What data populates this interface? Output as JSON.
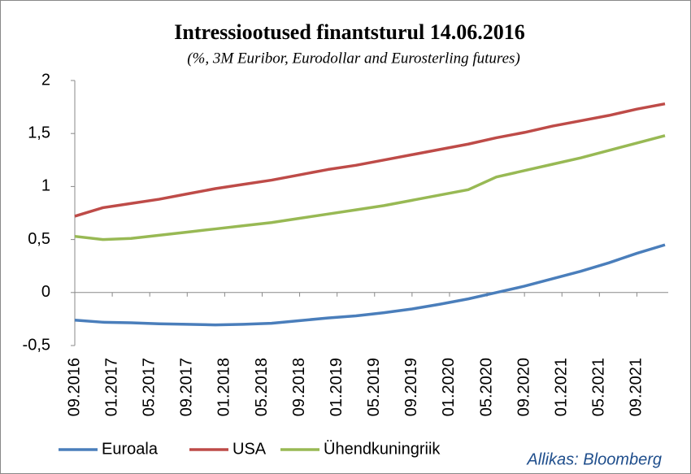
{
  "chart_data": {
    "type": "line",
    "title": "Intressiootused finantsturul 14.06.2016",
    "subtitle": "(%, 3M Euribor, Eurodollar and Eurosterling futures)",
    "source": "Allikas:  Bloomberg",
    "x": [
      "09.2016",
      "12.2016",
      "03.2017",
      "06.2017",
      "09.2017",
      "12.2017",
      "03.2018",
      "06.2018",
      "09.2018",
      "12.2018",
      "03.2019",
      "06.2019",
      "09.2019",
      "12.2019",
      "03.2020",
      "06.2020",
      "09.2020",
      "12.2020",
      "03.2021",
      "06.2021",
      "09.2021",
      "12.2021"
    ],
    "xlim": [
      "09.2016",
      "12.2021"
    ],
    "xticks": [
      "09.2016",
      "01.2017",
      "05.2017",
      "09.2017",
      "01.2018",
      "05.2018",
      "09.2018",
      "01.2019",
      "05.2019",
      "09.2019",
      "01.2020",
      "05.2020",
      "09.2020",
      "01.2021",
      "05.2021",
      "09.2021"
    ],
    "ylim": [
      -0.5,
      2
    ],
    "yticks": [
      {
        "value": -0.5,
        "label": "-0,5"
      },
      0,
      {
        "value": 0.5,
        "label": "0,5"
      },
      1,
      {
        "value": 1.5,
        "label": "1,5"
      },
      2
    ],
    "grid": false,
    "legend": "bottom",
    "series": [
      {
        "name": "Euroala",
        "color": "#4a7ebb",
        "values": [
          -0.26,
          -0.28,
          -0.285,
          -0.295,
          -0.3,
          -0.305,
          -0.3,
          -0.29,
          -0.265,
          -0.24,
          -0.22,
          -0.19,
          -0.155,
          -0.11,
          -0.06,
          0.0,
          0.06,
          0.13,
          0.2,
          0.28,
          0.37,
          0.45
        ]
      },
      {
        "name": "USA",
        "color": "#be4b48",
        "values": [
          0.72,
          0.8,
          0.84,
          0.88,
          0.93,
          0.98,
          1.02,
          1.06,
          1.11,
          1.16,
          1.2,
          1.25,
          1.3,
          1.35,
          1.4,
          1.46,
          1.51,
          1.57,
          1.62,
          1.67,
          1.73,
          1.78
        ]
      },
      {
        "name": "Ühendkuningriik",
        "color": "#98b954",
        "values": [
          0.53,
          0.5,
          0.51,
          0.54,
          0.57,
          0.6,
          0.63,
          0.66,
          0.7,
          0.74,
          0.78,
          0.82,
          0.87,
          0.92,
          0.97,
          1.09,
          1.15,
          1.21,
          1.27,
          1.34,
          1.41,
          1.48
        ]
      }
    ]
  }
}
